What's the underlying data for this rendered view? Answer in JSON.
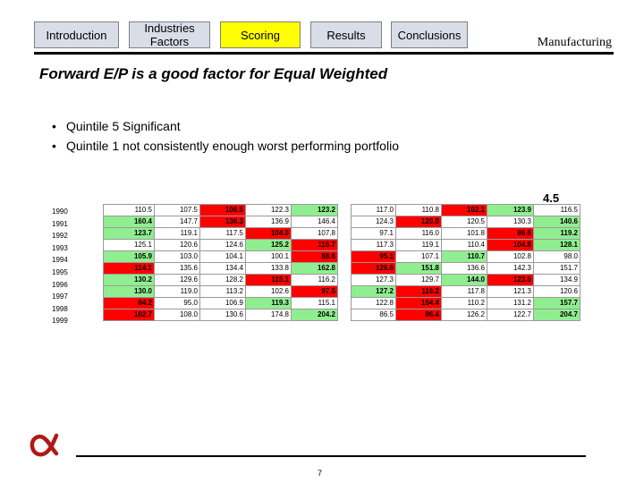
{
  "nav": {
    "tabs": [
      {
        "label": "Introduction",
        "active": false
      },
      {
        "label": "Industries\nFactors",
        "active": false
      },
      {
        "label": "Scoring",
        "active": true
      },
      {
        "label": "Results",
        "active": false
      },
      {
        "label": "Conclusions",
        "active": false
      }
    ]
  },
  "section_label": "Manufacturing",
  "headline": "Forward E/P is a good factor for Equal Weighted",
  "bullets": [
    "Quintile 5 Significant",
    "Quintile 1 not consistently enough worst performing portfolio"
  ],
  "note": "4.5",
  "years": [
    "1990",
    "1991",
    "1992",
    "1993",
    "1994",
    "1995",
    "1996",
    "1997",
    "1998",
    "1999"
  ],
  "colors": {
    "green": "#90ee90",
    "red": "#ff0000",
    "white": "#ffffff"
  },
  "table_left": {
    "rows": [
      [
        {
          "v": "110.5",
          "c": "w"
        },
        {
          "v": "107.5",
          "c": "w"
        },
        {
          "v": "106.5",
          "c": "r"
        },
        {
          "v": "122.3",
          "c": "w"
        },
        {
          "v": "123.2",
          "c": "g"
        }
      ],
      [
        {
          "v": "160.4",
          "c": "g"
        },
        {
          "v": "147.7",
          "c": "w"
        },
        {
          "v": "136.3",
          "c": "r"
        },
        {
          "v": "136.9",
          "c": "w"
        },
        {
          "v": "146.4",
          "c": "w"
        }
      ],
      [
        {
          "v": "123.7",
          "c": "g"
        },
        {
          "v": "119.1",
          "c": "w"
        },
        {
          "v": "117.5",
          "c": "w"
        },
        {
          "v": "104.0",
          "c": "r"
        },
        {
          "v": "107.8",
          "c": "w"
        }
      ],
      [
        {
          "v": "125.1",
          "c": "w"
        },
        {
          "v": "120.6",
          "c": "w"
        },
        {
          "v": "124.6",
          "c": "w"
        },
        {
          "v": "125.2",
          "c": "g"
        },
        {
          "v": "115.7",
          "c": "r"
        }
      ],
      [
        {
          "v": "105.9",
          "c": "g"
        },
        {
          "v": "103.0",
          "c": "w"
        },
        {
          "v": "104.1",
          "c": "w"
        },
        {
          "v": "100.1",
          "c": "w"
        },
        {
          "v": "88.6",
          "c": "r"
        }
      ],
      [
        {
          "v": "114.1",
          "c": "r"
        },
        {
          "v": "135.6",
          "c": "w"
        },
        {
          "v": "134.4",
          "c": "w"
        },
        {
          "v": "133.8",
          "c": "w"
        },
        {
          "v": "162.8",
          "c": "g"
        }
      ],
      [
        {
          "v": "130.2",
          "c": "g"
        },
        {
          "v": "129.6",
          "c": "w"
        },
        {
          "v": "128.2",
          "c": "w"
        },
        {
          "v": "115.1",
          "c": "r"
        },
        {
          "v": "116.2",
          "c": "w"
        }
      ],
      [
        {
          "v": "130.0",
          "c": "g"
        },
        {
          "v": "119.0",
          "c": "w"
        },
        {
          "v": "113.2",
          "c": "w"
        },
        {
          "v": "102.6",
          "c": "w"
        },
        {
          "v": "97.5",
          "c": "r"
        }
      ],
      [
        {
          "v": "84.2",
          "c": "r"
        },
        {
          "v": "95.0",
          "c": "w"
        },
        {
          "v": "106.9",
          "c": "w"
        },
        {
          "v": "119.3",
          "c": "g"
        },
        {
          "v": "115.1",
          "c": "w"
        }
      ],
      [
        {
          "v": "102.7",
          "c": "r"
        },
        {
          "v": "108.0",
          "c": "w"
        },
        {
          "v": "130.6",
          "c": "w"
        },
        {
          "v": "174.8",
          "c": "w"
        },
        {
          "v": "204.2",
          "c": "g"
        }
      ]
    ]
  },
  "table_right": {
    "rows": [
      [
        {
          "v": "117.0",
          "c": "w"
        },
        {
          "v": "110.8",
          "c": "w"
        },
        {
          "v": "102.1",
          "c": "r"
        },
        {
          "v": "123.9",
          "c": "g"
        },
        {
          "v": "116.5",
          "c": "w"
        }
      ],
      [
        {
          "v": "124.3",
          "c": "w"
        },
        {
          "v": "120.0",
          "c": "r"
        },
        {
          "v": "120.5",
          "c": "w"
        },
        {
          "v": "130.3",
          "c": "w"
        },
        {
          "v": "140.6",
          "c": "g"
        }
      ],
      [
        {
          "v": "97.1",
          "c": "w"
        },
        {
          "v": "116.0",
          "c": "w"
        },
        {
          "v": "101.8",
          "c": "w"
        },
        {
          "v": "86.6",
          "c": "r"
        },
        {
          "v": "119.2",
          "c": "g"
        }
      ],
      [
        {
          "v": "117.3",
          "c": "w"
        },
        {
          "v": "119.1",
          "c": "w"
        },
        {
          "v": "110.4",
          "c": "w"
        },
        {
          "v": "104.8",
          "c": "r"
        },
        {
          "v": "128.1",
          "c": "g"
        }
      ],
      [
        {
          "v": "95.1",
          "c": "r"
        },
        {
          "v": "107.1",
          "c": "w"
        },
        {
          "v": "110.7",
          "c": "g"
        },
        {
          "v": "102.8",
          "c": "w"
        },
        {
          "v": "98.0",
          "c": "w"
        }
      ],
      [
        {
          "v": "126.6",
          "c": "r"
        },
        {
          "v": "151.8",
          "c": "g"
        },
        {
          "v": "136.6",
          "c": "w"
        },
        {
          "v": "142.3",
          "c": "w"
        },
        {
          "v": "151.7",
          "c": "w"
        }
      ],
      [
        {
          "v": "127.3",
          "c": "w"
        },
        {
          "v": "129.7",
          "c": "w"
        },
        {
          "v": "144.0",
          "c": "g"
        },
        {
          "v": "123.5",
          "c": "r"
        },
        {
          "v": "134.9",
          "c": "w"
        }
      ],
      [
        {
          "v": "127.2",
          "c": "g"
        },
        {
          "v": "116.2",
          "c": "r"
        },
        {
          "v": "117.8",
          "c": "w"
        },
        {
          "v": "121.3",
          "c": "w"
        },
        {
          "v": "120.6",
          "c": "w"
        }
      ],
      [
        {
          "v": "122.8",
          "c": "w"
        },
        {
          "v": "104.4",
          "c": "r"
        },
        {
          "v": "110.2",
          "c": "w"
        },
        {
          "v": "131.2",
          "c": "w"
        },
        {
          "v": "157.7",
          "c": "g"
        }
      ],
      [
        {
          "v": "86.5",
          "c": "w"
        },
        {
          "v": "86.4",
          "c": "r"
        },
        {
          "v": "126.2",
          "c": "w"
        },
        {
          "v": "122.7",
          "c": "w"
        },
        {
          "v": "204.7",
          "c": "g"
        }
      ]
    ]
  },
  "page_number": "7",
  "logo": {
    "icon": "alpha-logo",
    "color": "#b01818"
  }
}
